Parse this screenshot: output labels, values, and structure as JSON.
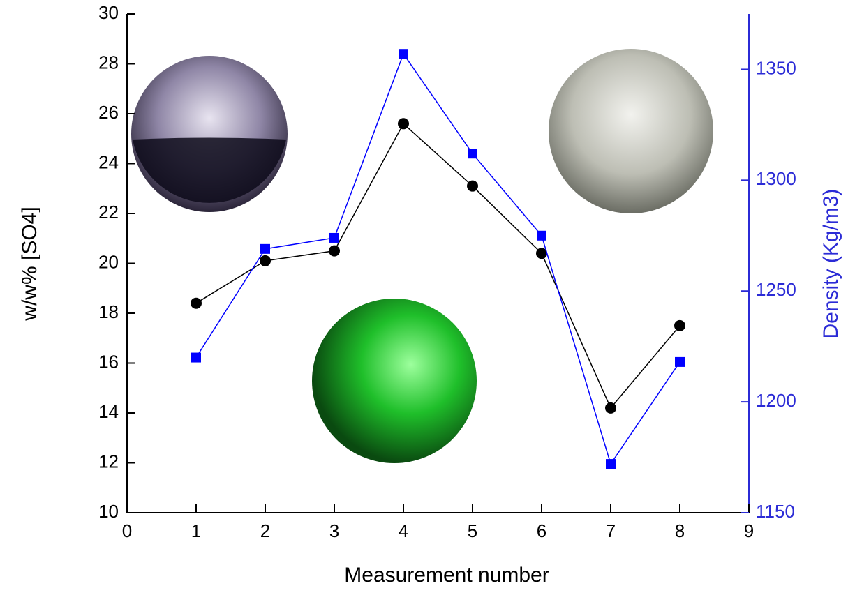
{
  "chart_data": {
    "type": "line",
    "x_label": "Measurement number",
    "y_label": "w/w% [SO4]",
    "y2_label": "Density (Kg/m3)",
    "x": [
      1,
      2,
      3,
      4,
      5,
      6,
      7,
      8
    ],
    "xlim": [
      0,
      9
    ],
    "xticks": [
      0,
      1,
      2,
      3,
      4,
      5,
      6,
      7,
      8,
      9
    ],
    "ylim": [
      10,
      30
    ],
    "yticks": [
      10,
      12,
      14,
      16,
      18,
      20,
      22,
      24,
      26,
      28,
      30
    ],
    "y2lim": [
      1150,
      1375
    ],
    "y2ticks": [
      1150,
      1200,
      1250,
      1300,
      1350
    ],
    "y2color": "#2b2bd6",
    "series": [
      {
        "marker": "circle",
        "color": "#000000",
        "values": [
          18.4,
          20.1,
          20.5,
          25.6,
          23.1,
          20.4,
          14.2,
          17.5
        ]
      },
      {
        "marker": "square",
        "color": "#0000ff",
        "axis": "y2",
        "values": [
          1220,
          1269,
          1274,
          1357,
          1312,
          1275,
          1172,
          1218
        ]
      }
    ]
  }
}
